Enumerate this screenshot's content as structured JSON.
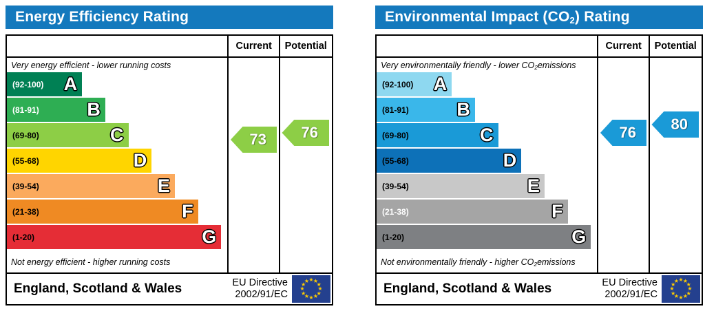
{
  "colors": {
    "header_blue": "#1479bd",
    "flag_blue": "#24408e",
    "star_yellow": "#ffcc00",
    "background": "#ffffff"
  },
  "charts": [
    {
      "title": {
        "pre": "Energy Efficiency Rating",
        "sub": "",
        "post": ""
      },
      "header": {
        "current": "Current",
        "potential": "Potential"
      },
      "top_caption": {
        "pre": "Very energy efficient - lower running costs",
        "sub": "",
        "post": ""
      },
      "bottom_caption": {
        "pre": "Not energy efficient - higher running costs",
        "sub": "",
        "post": ""
      },
      "bands": [
        {
          "letter": "A",
          "range": "(92-100)",
          "min": 92,
          "max": 100,
          "color": "#008054",
          "width_pct": 34,
          "label_color": "#ffffff"
        },
        {
          "letter": "B",
          "range": "(81-91)",
          "min": 81,
          "max": 91,
          "color": "#2eae53",
          "width_pct": 44.5,
          "label_color": "#ffffff"
        },
        {
          "letter": "C",
          "range": "(69-80)",
          "min": 69,
          "max": 80,
          "color": "#8dce46",
          "width_pct": 55,
          "label_color": "#000000"
        },
        {
          "letter": "D",
          "range": "(55-68)",
          "min": 55,
          "max": 68,
          "color": "#ffd500",
          "width_pct": 65.5,
          "label_color": "#000000"
        },
        {
          "letter": "E",
          "range": "(39-54)",
          "min": 39,
          "max": 54,
          "color": "#fbaa5d",
          "width_pct": 76,
          "label_color": "#000000"
        },
        {
          "letter": "F",
          "range": "(21-38)",
          "min": 21,
          "max": 38,
          "color": "#ef8a23",
          "width_pct": 86.5,
          "label_color": "#000000"
        },
        {
          "letter": "G",
          "range": "(1-20)",
          "min": 1,
          "max": 20,
          "color": "#e52d36",
          "width_pct": 97,
          "label_color": "#000000"
        }
      ],
      "current": {
        "value": 73,
        "color": "#8dce46"
      },
      "potential": {
        "value": 76,
        "color": "#8dce46"
      },
      "footer": {
        "region": "England, Scotland & Wales",
        "directive1": "EU Directive",
        "directive2": "2002/91/EC"
      }
    },
    {
      "title": {
        "pre": "Environmental Impact (CO",
        "sub": "2",
        "post": ") Rating"
      },
      "header": {
        "current": "Current",
        "potential": "Potential"
      },
      "top_caption": {
        "pre": "Very environmentally friendly - lower CO",
        "sub": "2",
        "post": " emissions"
      },
      "bottom_caption": {
        "pre": "Not environmentally friendly - higher CO",
        "sub": "2",
        "post": " emissions"
      },
      "bands": [
        {
          "letter": "A",
          "range": "(92-100)",
          "min": 92,
          "max": 100,
          "color": "#8ed8f0",
          "width_pct": 34,
          "label_color": "#000000"
        },
        {
          "letter": "B",
          "range": "(81-91)",
          "min": 81,
          "max": 91,
          "color": "#3ab7ea",
          "width_pct": 44.5,
          "label_color": "#000000"
        },
        {
          "letter": "C",
          "range": "(69-80)",
          "min": 69,
          "max": 80,
          "color": "#1a9ad7",
          "width_pct": 55,
          "label_color": "#000000"
        },
        {
          "letter": "D",
          "range": "(55-68)",
          "min": 55,
          "max": 68,
          "color": "#0d71b8",
          "width_pct": 65.5,
          "label_color": "#000000"
        },
        {
          "letter": "E",
          "range": "(39-54)",
          "min": 39,
          "max": 54,
          "color": "#c8c8c8",
          "width_pct": 76,
          "label_color": "#000000"
        },
        {
          "letter": "F",
          "range": "(21-38)",
          "min": 21,
          "max": 38,
          "color": "#a5a5a5",
          "width_pct": 86.5,
          "label_color": "#ffffff"
        },
        {
          "letter": "G",
          "range": "(1-20)",
          "min": 1,
          "max": 20,
          "color": "#7e8083",
          "width_pct": 97,
          "label_color": "#000000"
        }
      ],
      "current": {
        "value": 76,
        "color": "#1a9ad7"
      },
      "potential": {
        "value": 80,
        "color": "#1a9ad7"
      },
      "footer": {
        "region": "England, Scotland & Wales",
        "directive1": "EU Directive",
        "directive2": "2002/91/EC"
      }
    }
  ],
  "chart_data": [
    {
      "type": "bar",
      "title": "Energy Efficiency Rating",
      "categories": [
        "A (92-100)",
        "B (81-91)",
        "C (69-80)",
        "D (55-68)",
        "E (39-54)",
        "F (21-38)",
        "G (1-20)"
      ],
      "values": [
        34,
        44.5,
        55,
        65.5,
        76,
        86.5,
        97
      ],
      "series": [
        {
          "name": "Current",
          "values": [
            73
          ],
          "band": "C"
        },
        {
          "name": "Potential",
          "values": [
            76
          ],
          "band": "C"
        }
      ],
      "annotations": [
        "Very energy efficient - lower running costs",
        "Not energy efficient - higher running costs"
      ],
      "footer": "England, Scotland & Wales | EU Directive 2002/91/EC"
    },
    {
      "type": "bar",
      "title": "Environmental Impact (CO2) Rating",
      "categories": [
        "A (92-100)",
        "B (81-91)",
        "C (69-80)",
        "D (55-68)",
        "E (39-54)",
        "F (21-38)",
        "G (1-20)"
      ],
      "values": [
        34,
        44.5,
        55,
        65.5,
        76,
        86.5,
        97
      ],
      "series": [
        {
          "name": "Current",
          "values": [
            76
          ],
          "band": "C"
        },
        {
          "name": "Potential",
          "values": [
            80
          ],
          "band": "C"
        }
      ],
      "annotations": [
        "Very environmentally friendly - lower CO2 emissions",
        "Not environmentally friendly - higher CO2 emissions"
      ],
      "footer": "England, Scotland & Wales | EU Directive 2002/91/EC"
    }
  ]
}
